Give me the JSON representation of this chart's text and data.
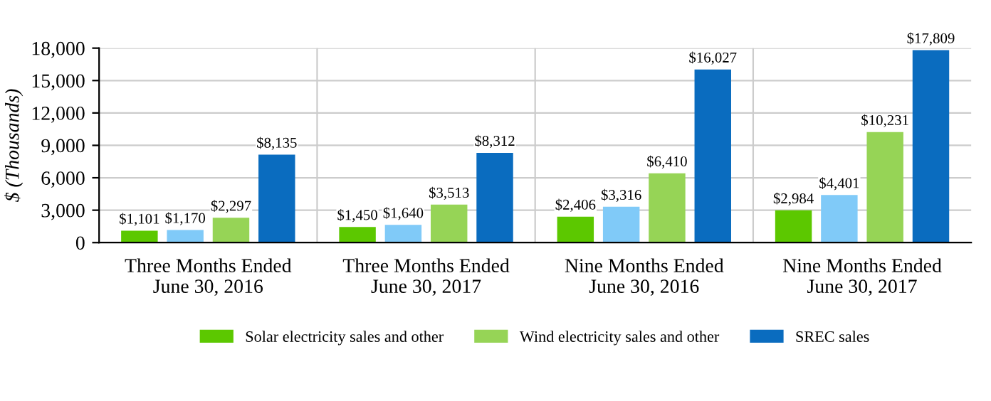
{
  "chart_data": {
    "type": "bar",
    "ylabel": "$ (Thousands)",
    "categories": [
      "Three Months Ended\nJune 30, 2016",
      "Three Months Ended\nJune 30, 2017",
      "Nine Months Ended\nJune 30, 2016",
      "Nine Months Ended\nJune 30, 2017"
    ],
    "series": [
      {
        "name": "Solar electricity sales and other",
        "color": "#5cc800",
        "values": [
          1101,
          1450,
          2406,
          2984
        ],
        "value_labels": [
          "$1,101",
          "$1,450",
          "$2,406",
          "$2,984"
        ]
      },
      {
        "color": "#80caf8",
        "values": [
          1170,
          1640,
          3316,
          4401
        ],
        "value_labels": [
          "$1,170",
          "$1,640",
          "$3,316",
          "$4,401"
        ]
      },
      {
        "name": "Wind electricity sales and other",
        "color": "#96d456",
        "values": [
          2297,
          3513,
          6410,
          10231
        ],
        "value_labels": [
          "$2,297",
          "$3,513",
          "$6,410",
          "$10,231"
        ]
      },
      {
        "name": "SREC sales",
        "color": "#0a6cbf",
        "values": [
          8135,
          8312,
          16027,
          17809
        ],
        "value_labels": [
          "$8,135",
          "$8,312",
          "$16,027",
          "$17,809"
        ]
      }
    ],
    "ylim": [
      0,
      18000
    ],
    "yticks": [
      0,
      {
        "value": 3000,
        "label": "3,000"
      },
      {
        "value": 6000,
        "label": "6,000"
      },
      {
        "value": 9000,
        "label": "9,000"
      },
      {
        "value": 12000,
        "label": "12,000"
      },
      {
        "value": 15000,
        "label": "15,000"
      },
      {
        "value": 18000,
        "label": "18,000"
      }
    ],
    "grid": true,
    "legend": "bottom"
  }
}
